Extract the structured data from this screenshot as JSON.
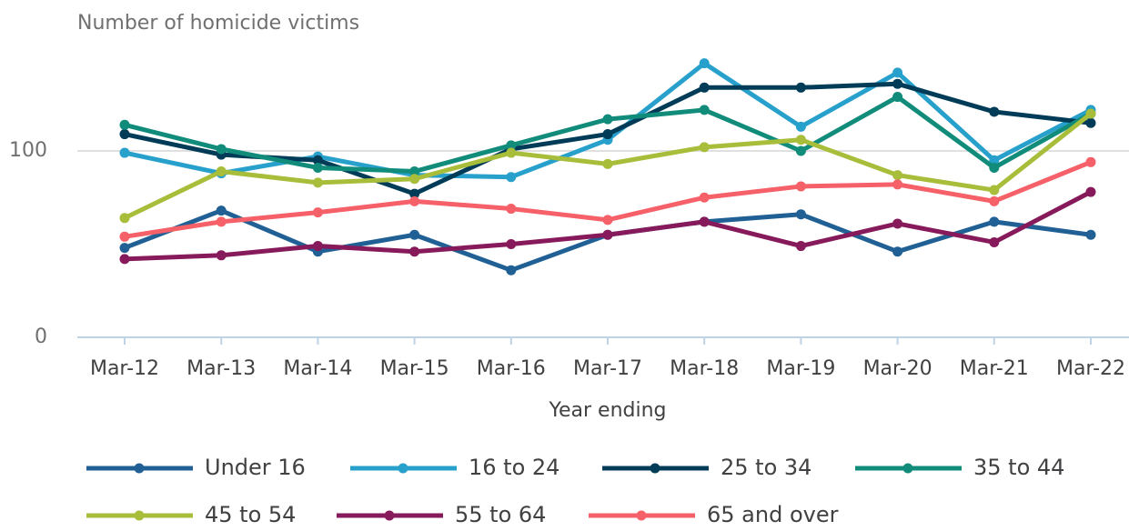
{
  "chart_data": {
    "type": "line",
    "title": "Number of homicide victims",
    "x_label": "Year ending",
    "categories": [
      "Mar-12",
      "Mar-13",
      "Mar-14",
      "Mar-15",
      "Mar-16",
      "Mar-17",
      "Mar-18",
      "Mar-19",
      "Mar-20",
      "Mar-21",
      "Mar-22"
    ],
    "series": [
      {
        "name": "Under 16",
        "color": "#206095",
        "values": [
          48,
          68,
          46,
          55,
          36,
          55,
          62,
          66,
          46,
          62,
          55
        ]
      },
      {
        "name": "16 to 24",
        "color": "#27a0cc",
        "values": [
          99,
          88,
          97,
          87,
          86,
          106,
          147,
          113,
          142,
          95,
          122
        ]
      },
      {
        "name": "25 to 34",
        "color": "#003c57",
        "values": [
          109,
          98,
          95,
          77,
          101,
          109,
          134,
          134,
          136,
          121,
          115
        ]
      },
      {
        "name": "35 to 44",
        "color": "#118c7b",
        "values": [
          114,
          101,
          91,
          89,
          103,
          117,
          122,
          100,
          129,
          91,
          120
        ]
      },
      {
        "name": "45 to 54",
        "color": "#a8bd3a",
        "values": [
          64,
          89,
          83,
          85,
          99,
          93,
          102,
          106,
          87,
          79,
          120
        ]
      },
      {
        "name": "55 to 64",
        "color": "#871a5b",
        "values": [
          42,
          44,
          49,
          46,
          50,
          55,
          62,
          49,
          61,
          51,
          78
        ]
      },
      {
        "name": "65 and over",
        "color": "#f66068",
        "values": [
          54,
          62,
          67,
          73,
          69,
          63,
          75,
          81,
          82,
          73,
          94
        ]
      }
    ],
    "ylim": [
      0,
      150
    ],
    "yticks": [
      0,
      100
    ],
    "grid": true
  }
}
